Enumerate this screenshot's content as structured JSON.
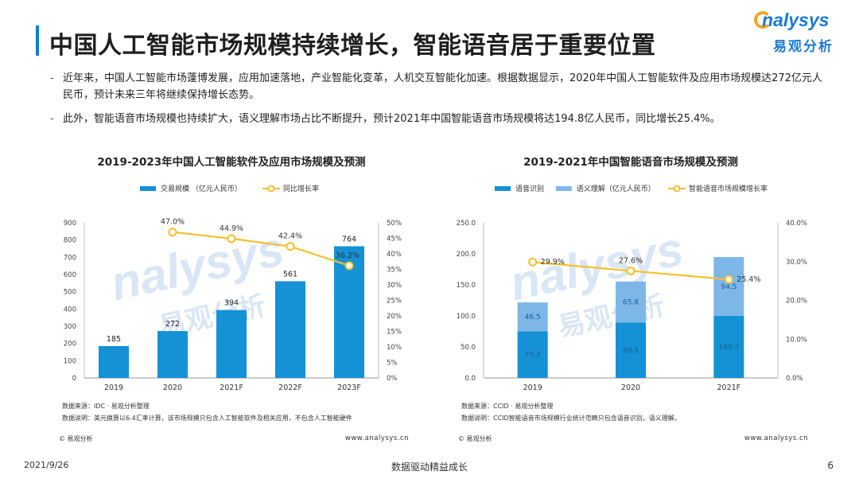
{
  "page": {
    "title": "中国人工智能市场规模持续增长，智能语音居于重要位置",
    "logo_en": "nalysys",
    "logo_cn": "易观分析",
    "bullets": [
      "近年来，中国人工智能市场蓬博发展，应用加速落地，产业智能化变革，人机交互智能化加速。根据数据显示，2020年中国人工智能软件及应用市场规模达272亿元人民币，预计未来三年将继续保持增长态势。",
      "此外，智能语音市场规模也持续扩大，语义理解市场占比不断提升，预计2021年中国智能语音市场规模将达194.8亿人民币，同比增长25.4%。"
    ],
    "footer_date": "2021/9/26",
    "footer_slogan": "数据驱动精益成长",
    "footer_page": "6",
    "watermark_en": "nalysys",
    "watermark_cn": "易观分析"
  },
  "panel1": {
    "source": "数据来源：IDC · 易观分析整理",
    "note": "数据说明：美元换算以6.4汇率计算，该市场规模只包含人工智能软件及相关应用，不包含人工智能硬件",
    "copyright": "© 易观分析",
    "website": "www.analysys.cn"
  },
  "panel2": {
    "source": "数据来源：CCID · 易观分析整理",
    "note": "数据说明：CCID智能语音市场规模行业统计范畴只包含语音识别，语义理解。",
    "copyright": "© 易观分析",
    "website": "www.analysys.cn"
  },
  "colors": {
    "bar": "#1591d6",
    "line": "#f2c12e",
    "speech_recognition": "#1591d6",
    "semantic_understanding": "#7db7e8",
    "title_accent": "#0f7fc9"
  },
  "chart_data": [
    {
      "type": "bar",
      "title": "2019-2023年中国人工智能软件及应用市场规模及预测",
      "categories": [
        "2019",
        "2020",
        "2021F",
        "2022F",
        "2023F"
      ],
      "series": [
        {
          "name": "交易规模 （亿元人民币）",
          "type": "bar",
          "values": [
            185,
            272,
            394,
            561,
            764
          ],
          "labels": [
            "185",
            "272",
            "394",
            "561",
            "764"
          ]
        },
        {
          "name": "同比增长率",
          "type": "line",
          "axis": "right",
          "values": [
            null,
            47.0,
            44.9,
            42.4,
            36.2
          ],
          "labels": [
            "",
            "47.0%",
            "44.9%",
            "42.4%",
            "36.2%"
          ]
        }
      ],
      "ylim": [
        0,
        900
      ],
      "yticks": [
        "0",
        "100",
        "200",
        "300",
        "400",
        "500",
        "600",
        "700",
        "800",
        "900"
      ],
      "y2lim": [
        0,
        50
      ],
      "y2ticks": [
        "0%",
        "5%",
        "10%",
        "15%",
        "20%",
        "25%",
        "30%",
        "35%",
        "40%",
        "45%",
        "50%"
      ],
      "legend": "top"
    },
    {
      "type": "bar",
      "title": "2019-2021年中国智能语音市场规模及预测",
      "categories": [
        "2019",
        "2020",
        "2021F"
      ],
      "stacked": true,
      "series": [
        {
          "name": "语音识别",
          "type": "bar",
          "values": [
            75.2,
            89.5,
            100.3
          ],
          "labels": [
            "75.2",
            "89.5",
            "100.3"
          ]
        },
        {
          "name": "语义理解（亿元人民币）",
          "type": "bar",
          "values": [
            46.5,
            65.8,
            94.5
          ],
          "labels": [
            "46.5",
            "65.8",
            "94.5"
          ]
        },
        {
          "name": "智能语音市场规模增长率",
          "type": "line",
          "axis": "right",
          "values": [
            29.9,
            27.6,
            25.4
          ],
          "labels": [
            "29.9%",
            "27.6%",
            "25.4%"
          ]
        }
      ],
      "ylim": [
        0,
        250
      ],
      "yticks": [
        "0.0",
        "50.0",
        "100.0",
        "150.0",
        "200.0",
        "250.0"
      ],
      "y2lim": [
        0,
        40
      ],
      "y2ticks": [
        "0.0%",
        "10.0%",
        "20.0%",
        "30.0%",
        "40.0%"
      ],
      "legend": "top"
    }
  ]
}
